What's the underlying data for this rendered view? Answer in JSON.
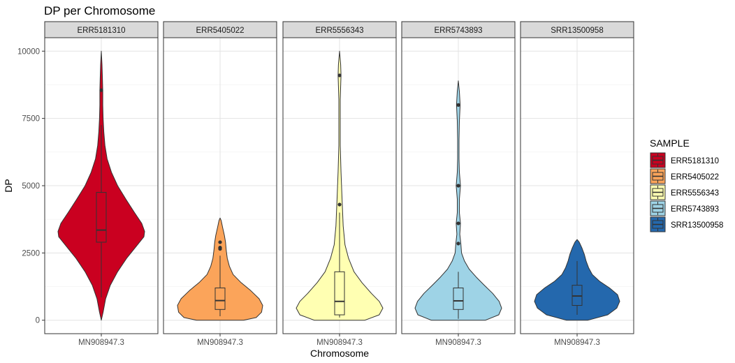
{
  "chart_data": {
    "type": "violin",
    "title": "DP per Chromosome",
    "xlabel": "Chromosome",
    "ylabel": "DP",
    "ylim": [
      -500,
      10500
    ],
    "y_ticks": [
      0,
      2500,
      5000,
      7500,
      10000
    ],
    "legend_title": "SAMPLE",
    "legend_position": "right",
    "grid": true,
    "panels": [
      {
        "sample": "ERR5181310",
        "x_tick": "MN908947.3",
        "fill": "#ca0020",
        "violin_profile": [
          [
            0,
            0.0
          ],
          [
            300,
            0.005
          ],
          [
            800,
            0.012
          ],
          [
            1300,
            0.025
          ],
          [
            1800,
            0.045
          ],
          [
            2300,
            0.07
          ],
          [
            2800,
            0.1
          ],
          [
            3100,
            0.118
          ],
          [
            3300,
            0.12
          ],
          [
            3600,
            0.112
          ],
          [
            4000,
            0.092
          ],
          [
            4500,
            0.068
          ],
          [
            5000,
            0.045
          ],
          [
            5500,
            0.028
          ],
          [
            6000,
            0.016
          ],
          [
            6500,
            0.01
          ],
          [
            7000,
            0.007
          ],
          [
            7500,
            0.005
          ],
          [
            8000,
            0.004
          ],
          [
            8500,
            0.004
          ],
          [
            9000,
            0.003
          ],
          [
            9500,
            0.002
          ],
          [
            10000,
            0.0
          ]
        ],
        "box": {
          "whisker_low": 850,
          "q1": 2900,
          "median": 3350,
          "q3": 4750,
          "whisker_high": 7250
        },
        "outliers": [
          8550
        ]
      },
      {
        "sample": "ERR5405022",
        "x_tick": "MN908947.3",
        "fill": "#fba45a",
        "violin_profile": [
          [
            0,
            0.065
          ],
          [
            100,
            0.1
          ],
          [
            300,
            0.115
          ],
          [
            550,
            0.118
          ],
          [
            800,
            0.108
          ],
          [
            1100,
            0.085
          ],
          [
            1400,
            0.058
          ],
          [
            1700,
            0.036
          ],
          [
            2000,
            0.026
          ],
          [
            2300,
            0.02
          ],
          [
            2600,
            0.017
          ],
          [
            2900,
            0.015
          ],
          [
            3150,
            0.012
          ],
          [
            3450,
            0.007
          ],
          [
            3700,
            0.003
          ],
          [
            3800,
            0.0
          ]
        ],
        "box": {
          "whisker_low": 150,
          "q1": 400,
          "median": 730,
          "q3": 1200,
          "whisker_high": 2400
        },
        "outliers": [
          2650,
          2700,
          2900
        ]
      },
      {
        "sample": "ERR5556343",
        "x_tick": "MN908947.3",
        "fill": "#ffffb2",
        "violin_profile": [
          [
            0,
            0.07
          ],
          [
            200,
            0.11
          ],
          [
            450,
            0.12
          ],
          [
            700,
            0.11
          ],
          [
            1000,
            0.088
          ],
          [
            1400,
            0.062
          ],
          [
            1800,
            0.04
          ],
          [
            2300,
            0.025
          ],
          [
            2800,
            0.015
          ],
          [
            3500,
            0.01
          ],
          [
            4500,
            0.007
          ],
          [
            5500,
            0.004
          ],
          [
            6500,
            0.002
          ],
          [
            7500,
            0.002
          ],
          [
            8200,
            0.002
          ],
          [
            8700,
            0.003
          ],
          [
            9100,
            0.004
          ],
          [
            9500,
            0.003
          ],
          [
            10000,
            0.0
          ]
        ],
        "box": {
          "whisker_low": 100,
          "q1": 200,
          "median": 700,
          "q3": 1800,
          "whisker_high": 4000
        },
        "outliers": [
          4300,
          9100
        ]
      },
      {
        "sample": "ERR5743893",
        "x_tick": "MN908947.3",
        "fill": "#9ed3e6",
        "violin_profile": [
          [
            0,
            0.075
          ],
          [
            200,
            0.112
          ],
          [
            450,
            0.12
          ],
          [
            700,
            0.113
          ],
          [
            1000,
            0.095
          ],
          [
            1300,
            0.072
          ],
          [
            1600,
            0.05
          ],
          [
            1900,
            0.03
          ],
          [
            2200,
            0.017
          ],
          [
            2500,
            0.009
          ],
          [
            2850,
            0.007
          ],
          [
            3200,
            0.004
          ],
          [
            3600,
            0.006
          ],
          [
            4000,
            0.003
          ],
          [
            4500,
            0.003
          ],
          [
            5000,
            0.006
          ],
          [
            5500,
            0.003
          ],
          [
            6000,
            0.002
          ],
          [
            6700,
            0.002
          ],
          [
            7400,
            0.003
          ],
          [
            8000,
            0.005
          ],
          [
            8500,
            0.003
          ],
          [
            8900,
            0.0
          ]
        ],
        "box": {
          "whisker_low": 50,
          "q1": 400,
          "median": 720,
          "q3": 1200,
          "whisker_high": 1800
        },
        "outliers": [
          2850,
          3600,
          5000,
          8000
        ]
      },
      {
        "sample": "SRR13500958",
        "x_tick": "MN908947.3",
        "fill": "#2468ad",
        "violin_profile": [
          [
            0,
            0.03
          ],
          [
            200,
            0.085
          ],
          [
            450,
            0.11
          ],
          [
            700,
            0.118
          ],
          [
            950,
            0.112
          ],
          [
            1200,
            0.09
          ],
          [
            1450,
            0.062
          ],
          [
            1700,
            0.042
          ],
          [
            1950,
            0.032
          ],
          [
            2200,
            0.025
          ],
          [
            2450,
            0.02
          ],
          [
            2700,
            0.013
          ],
          [
            2900,
            0.006
          ],
          [
            3000,
            0.0
          ]
        ],
        "box": {
          "whisker_low": 200,
          "q1": 550,
          "median": 900,
          "q3": 1300,
          "whisker_high": 2200
        },
        "outliers": []
      }
    ]
  }
}
